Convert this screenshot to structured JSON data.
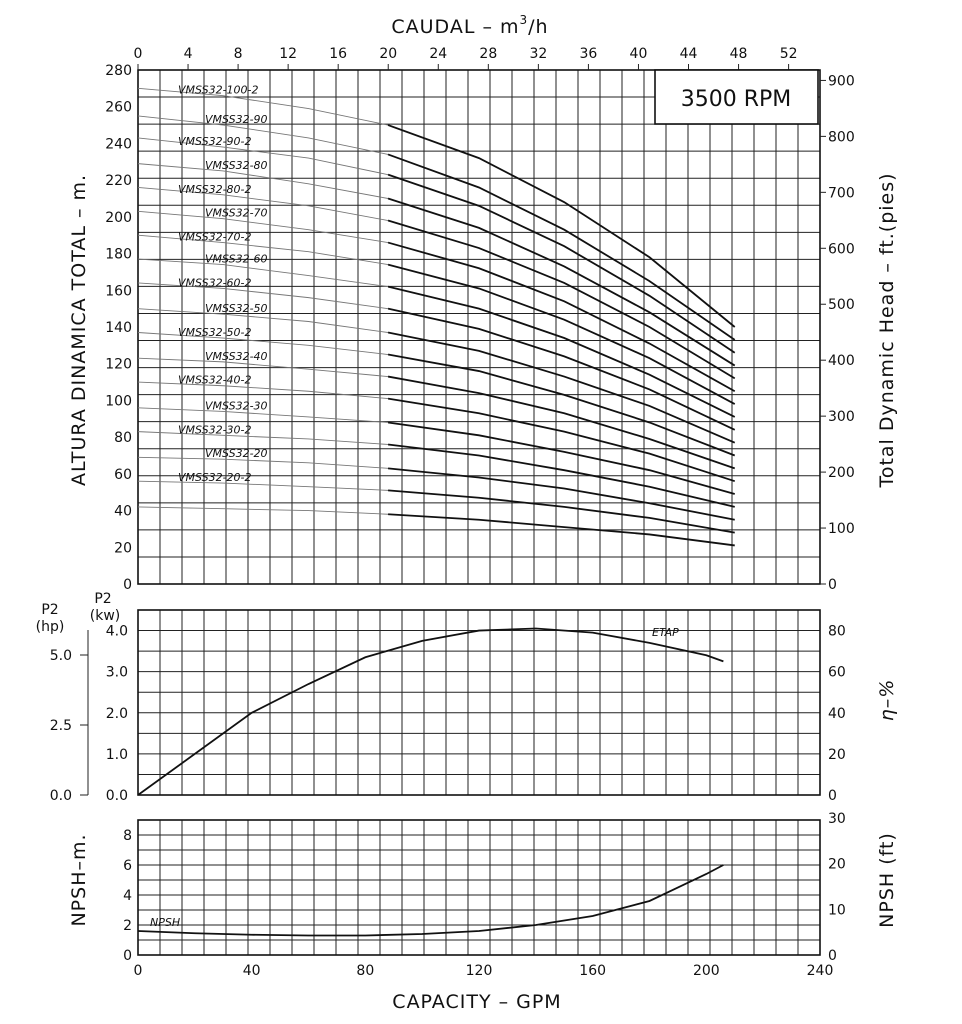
{
  "chart_data": [
    {
      "type": "line",
      "panel": "head",
      "top_axis": {
        "label_main": "CAUDAL  –  m",
        "label_sup": "3",
        "label_tail": "/h",
        "ticks": [
          0,
          4,
          8,
          12,
          16,
          20,
          24,
          28,
          32,
          36,
          40,
          44,
          48,
          52
        ]
      },
      "ylabel_left": "ALTURA DINAMICA TOTAL  –  m.",
      "ylabel_right": "Total Dynamic Head  –  ft.(pies)",
      "ylim_m": [
        0,
        280
      ],
      "yticks_m": [
        0,
        20,
        40,
        60,
        80,
        100,
        120,
        140,
        160,
        180,
        200,
        220,
        240,
        260,
        280
      ],
      "yticks_ft": [
        0,
        100,
        200,
        300,
        400,
        500,
        600,
        700,
        800,
        900
      ],
      "annotation": "3500 RPM",
      "xlim_gpm": [
        0,
        240
      ],
      "grid": true,
      "series": [
        {
          "name": "VMSS32-100-2",
          "x_gpm": [
            0,
            30,
            60,
            88,
            120,
            150,
            180,
            210
          ],
          "head_m": [
            270,
            266,
            259,
            250,
            232,
            208,
            178,
            140
          ]
        },
        {
          "name": "VMSS32-90",
          "x_gpm": [
            0,
            30,
            60,
            88,
            120,
            150,
            180,
            210
          ],
          "head_m": [
            255,
            250,
            243,
            234,
            216,
            193,
            165,
            133
          ]
        },
        {
          "name": "VMSS32-90-2",
          "x_gpm": [
            0,
            30,
            60,
            88,
            120,
            150,
            180,
            210
          ],
          "head_m": [
            243,
            238,
            232,
            223,
            206,
            184,
            157,
            126
          ]
        },
        {
          "name": "VMSS32-80",
          "x_gpm": [
            0,
            30,
            60,
            88,
            120,
            150,
            180,
            210
          ],
          "head_m": [
            229,
            225,
            218,
            210,
            194,
            173,
            148,
            119
          ]
        },
        {
          "name": "VMSS32-80-2",
          "x_gpm": [
            0,
            30,
            60,
            88,
            120,
            150,
            180,
            210
          ],
          "head_m": [
            216,
            212,
            206,
            198,
            183,
            164,
            140,
            112
          ]
        },
        {
          "name": "VMSS32-70",
          "x_gpm": [
            0,
            30,
            60,
            88,
            120,
            150,
            180,
            210
          ],
          "head_m": [
            203,
            199,
            193,
            186,
            172,
            154,
            131,
            105
          ]
        },
        {
          "name": "VMSS32-70-2",
          "x_gpm": [
            0,
            30,
            60,
            88,
            120,
            150,
            180,
            210
          ],
          "head_m": [
            190,
            186,
            181,
            174,
            161,
            144,
            123,
            98
          ]
        },
        {
          "name": "VMSS32-60",
          "x_gpm": [
            0,
            30,
            60,
            88,
            120,
            150,
            180,
            210
          ],
          "head_m": [
            177,
            174,
            168,
            162,
            150,
            134,
            114,
            91
          ]
        },
        {
          "name": "VMSS32-60-2",
          "x_gpm": [
            0,
            30,
            60,
            88,
            120,
            150,
            180,
            210
          ],
          "head_m": [
            164,
            161,
            156,
            150,
            139,
            124,
            106,
            84
          ]
        },
        {
          "name": "VMSS32-50",
          "x_gpm": [
            0,
            30,
            60,
            88,
            120,
            150,
            180,
            210
          ],
          "head_m": [
            150,
            147,
            143,
            137,
            127,
            113,
            97,
            77
          ]
        },
        {
          "name": "VMSS32-50-2",
          "x_gpm": [
            0,
            30,
            60,
            88,
            120,
            150,
            180,
            210
          ],
          "head_m": [
            137,
            134,
            130,
            125,
            116,
            103,
            88,
            70
          ]
        },
        {
          "name": "VMSS32-40",
          "x_gpm": [
            0,
            30,
            60,
            88,
            120,
            150,
            180,
            210
          ],
          "head_m": [
            123,
            121,
            117,
            113,
            104,
            93,
            79,
            63
          ]
        },
        {
          "name": "VMSS32-40-2",
          "x_gpm": [
            0,
            30,
            60,
            88,
            120,
            150,
            180,
            210
          ],
          "head_m": [
            110,
            108,
            105,
            101,
            93,
            83,
            71,
            56
          ]
        },
        {
          "name": "VMSS32-30",
          "x_gpm": [
            0,
            30,
            60,
            88,
            120,
            150,
            180,
            210
          ],
          "head_m": [
            96,
            94,
            91,
            88,
            81,
            72,
            62,
            49
          ]
        },
        {
          "name": "VMSS32-30-2",
          "x_gpm": [
            0,
            30,
            60,
            88,
            120,
            150,
            180,
            210
          ],
          "head_m": [
            83,
            81,
            79,
            76,
            70,
            62,
            53,
            42
          ]
        },
        {
          "name": "VMSS32-20",
          "x_gpm": [
            0,
            30,
            60,
            88,
            120,
            150,
            180,
            210
          ],
          "head_m": [
            69,
            68,
            66,
            63,
            58,
            52,
            44,
            35
          ]
        },
        {
          "name": "VMSS32-20-2",
          "x_gpm": [
            0,
            30,
            60,
            88,
            120,
            150,
            180,
            210
          ],
          "head_m": [
            56,
            55,
            53,
            51,
            47,
            42,
            36,
            28
          ]
        },
        {
          "name": "",
          "x_gpm": [
            0,
            30,
            60,
            88,
            120,
            150,
            180,
            210
          ],
          "head_m": [
            42,
            41,
            40,
            38,
            35,
            31,
            27,
            21
          ]
        }
      ]
    },
    {
      "type": "line",
      "panel": "power-efficiency",
      "ylabel_left_hp": "P2",
      "ylabel_left_hp_unit": "(hp)",
      "ylabel_left_kw": "P2",
      "ylabel_left_kw_unit": "(kw)",
      "ylabel_right": "η–%",
      "yticks_hp": [
        "0.0",
        "2.5",
        "5.0"
      ],
      "yticks_kw": [
        "0.0",
        "1.0",
        "2.0",
        "3.0",
        "4.0"
      ],
      "yticks_eff": [
        0,
        20,
        40,
        60,
        80
      ],
      "ylim_eff": [
        0,
        90
      ],
      "series": [
        {
          "name": "ETAP",
          "x_gpm": [
            0,
            20,
            40,
            60,
            80,
            100,
            120,
            140,
            160,
            180,
            200,
            206
          ],
          "eff_pct": [
            0,
            20,
            40,
            54,
            67,
            75,
            80,
            81,
            79,
            74,
            68,
            65
          ]
        }
      ]
    },
    {
      "type": "line",
      "panel": "npsh",
      "ylabel_left": "NPSH–m.",
      "ylabel_right": "NPSH  (ft)",
      "yticks_m": [
        0,
        2,
        4,
        6,
        8
      ],
      "yticks_ft": [
        0,
        10,
        20,
        30
      ],
      "ylim_m": [
        0,
        9
      ],
      "xlabel": "CAPACITY  –  GPM",
      "xticks_gpm": [
        0,
        40,
        80,
        120,
        160,
        200,
        240
      ],
      "series": [
        {
          "name": "NPSH",
          "x_gpm": [
            0,
            20,
            40,
            60,
            80,
            100,
            120,
            140,
            160,
            180,
            200,
            206
          ],
          "npsh_m": [
            1.6,
            1.45,
            1.35,
            1.3,
            1.3,
            1.4,
            1.6,
            2.0,
            2.6,
            3.6,
            5.4,
            6.0
          ]
        }
      ]
    }
  ]
}
